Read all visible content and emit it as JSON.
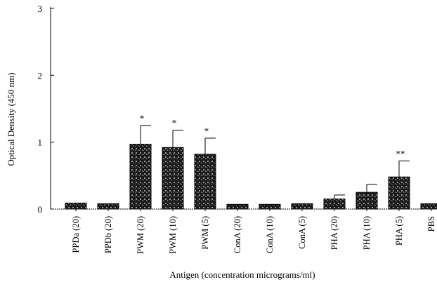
{
  "chart_data": {
    "type": "bar",
    "title": "",
    "xlabel": "Antigen (concentration micrograms/ml)",
    "ylabel": "Optical Density (450 nm)",
    "ylim": [
      0,
      3
    ],
    "yticks": [
      "0",
      "1",
      "2",
      "3"
    ],
    "categories": [
      "PPDa (20)",
      "PPDb (20)",
      "PWM (20)",
      "PWM (10)",
      "PWM (5)",
      "ConA (20)",
      "ConA (10)",
      "ConA (5)",
      "PHA (20)",
      "PHA (10)",
      "PHA (5)",
      "PBS"
    ],
    "values": [
      0.09,
      0.08,
      0.97,
      0.92,
      0.82,
      0.07,
      0.07,
      0.08,
      0.15,
      0.25,
      0.48,
      0.08
    ],
    "errors": [
      0.0,
      0.0,
      0.28,
      0.26,
      0.24,
      0.0,
      0.0,
      0.0,
      0.06,
      0.12,
      0.24,
      0.0
    ],
    "annotations": [
      "",
      "",
      "*",
      "*",
      "*",
      "",
      "",
      "",
      "",
      "",
      "**",
      ""
    ],
    "grid": false,
    "bar_color": "#1a1a1a",
    "bar_pattern_color": "#9a9a9a"
  }
}
